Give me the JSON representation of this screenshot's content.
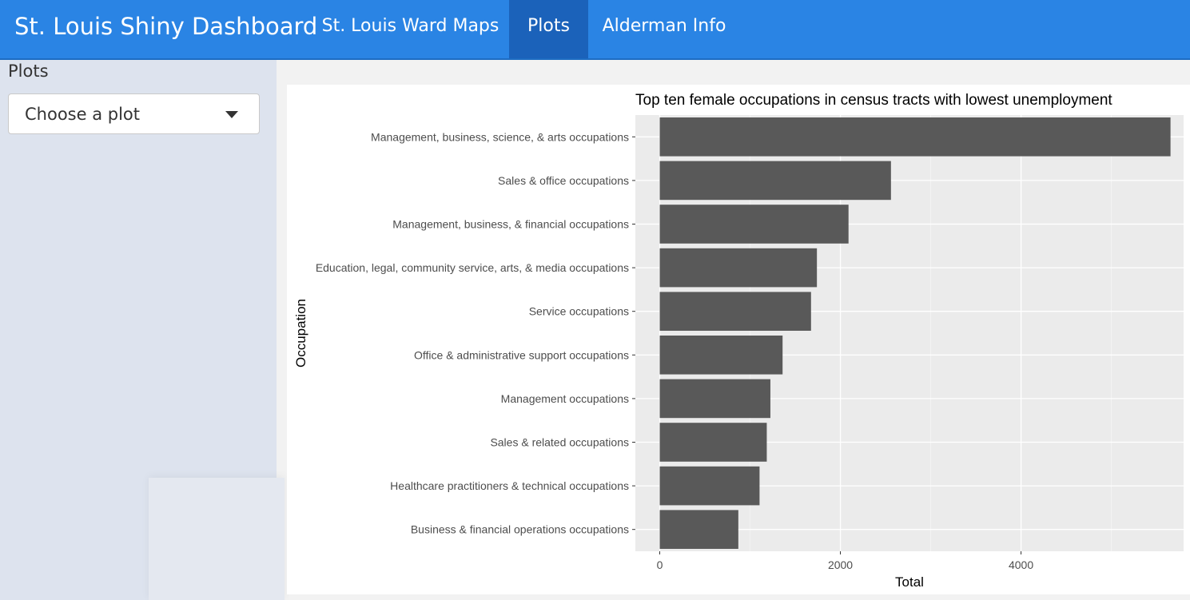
{
  "navbar": {
    "brand": "St. Louis Shiny Dashboard",
    "tabs": [
      {
        "label": "St. Louis Ward Maps",
        "active": false
      },
      {
        "label": "Plots",
        "active": true
      },
      {
        "label": "Alderman Info",
        "active": false
      }
    ],
    "color": "#2a84e4",
    "active_color": "#1b62ba"
  },
  "sidebar": {
    "heading": "Plots",
    "select": {
      "value": "Choose a plot",
      "icon": "caret-down-icon"
    }
  },
  "chart_data": {
    "type": "bar",
    "orientation": "horizontal",
    "title": "Top ten female occupations in census tracts with lowest unemployment",
    "xlabel": "Total",
    "ylabel": "Occupation",
    "xlim": [
      -270,
      5800
    ],
    "xticks": [
      0,
      2000,
      4000
    ],
    "grid": true,
    "bar_color": "#595959",
    "panel_color": "#ebebeb",
    "categories": [
      "Management, business, science, & arts occupations",
      "Sales & office occupations",
      "Management, business, & financial occupations",
      "Education, legal, community service, arts, & media occupations",
      "Service occupations",
      "Office & administrative support occupations",
      "Management occupations",
      "Sales & related occupations",
      "Healthcare practitioners & technical occupations",
      "Business & financial operations occupations"
    ],
    "values": [
      5655,
      2560,
      2090,
      1740,
      1675,
      1360,
      1225,
      1185,
      1105,
      870
    ]
  }
}
